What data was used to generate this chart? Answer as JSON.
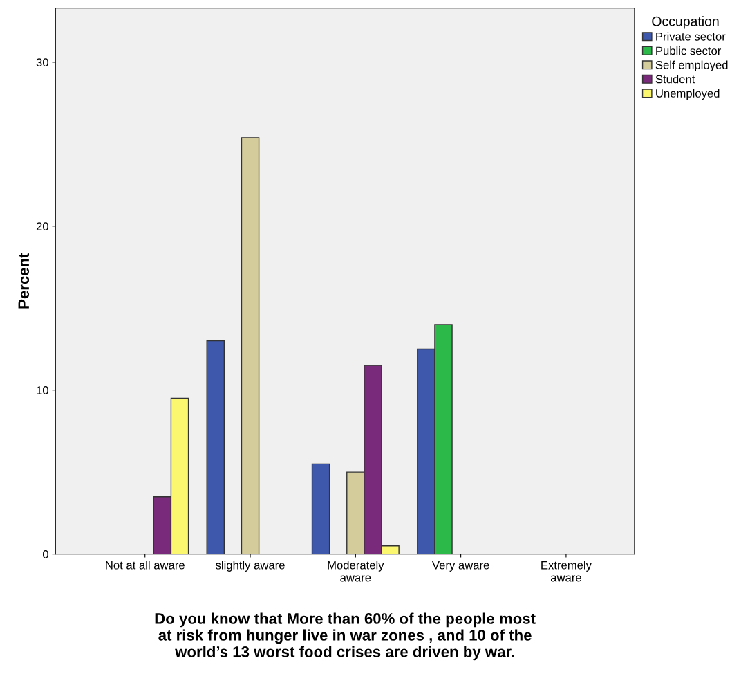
{
  "chart_data": {
    "type": "bar",
    "xlabel": "Do you know that More than 60% of the people most\nat risk from hunger live in war zones , and 10 of the\nworld’s 13 worst food crises are driven by war.",
    "ylabel": "Percent",
    "legend_title": "Occupation",
    "legend": "top right",
    "grid": false,
    "categories": [
      "Not at all aware",
      "slightly aware",
      "Moderately\naware",
      "Very aware",
      "Extremely\naware"
    ],
    "series": [
      {
        "name": "Private sector",
        "color": "#3e58ac",
        "values": [
          null,
          13,
          5.5,
          12.5,
          null
        ]
      },
      {
        "name": "Public sector",
        "color": "#2db84a",
        "values": [
          null,
          null,
          null,
          14,
          null
        ]
      },
      {
        "name": "Self employed",
        "color": "#d4cc9a",
        "values": [
          null,
          25.4,
          5,
          null,
          null
        ]
      },
      {
        "name": "Student",
        "color": "#7a2a7a",
        "values": [
          3.5,
          null,
          11.5,
          null,
          null
        ]
      },
      {
        "name": "Unemployed",
        "color": "#fbf870",
        "values": [
          9.5,
          null,
          0.5,
          null,
          null
        ]
      }
    ],
    "ylim": [
      0,
      33.3
    ],
    "yticks": [
      0,
      10,
      20,
      30
    ]
  }
}
